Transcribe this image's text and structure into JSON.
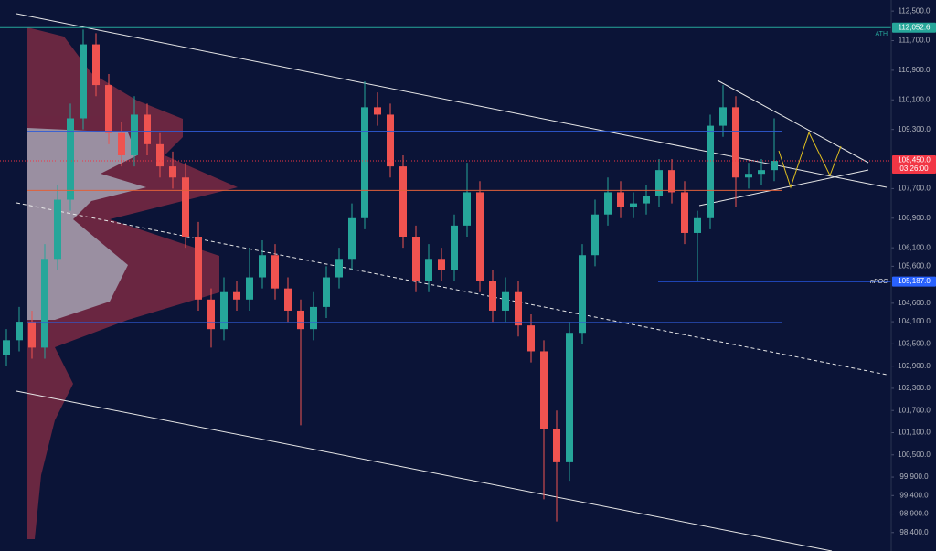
{
  "chart_data": {
    "type": "candlestick",
    "up_color": "#26a69a",
    "down_color": "#ef5350",
    "open": [
      103200,
      103600,
      104100,
      103400,
      105800,
      107400,
      109600,
      111600,
      110500,
      109200,
      108600,
      109700,
      108900,
      108300,
      108000,
      106400,
      104700,
      103900,
      104900,
      104700,
      105300,
      105900,
      105000,
      104400,
      103900,
      104500,
      105300,
      105800,
      106900,
      109900,
      109700,
      108300,
      106400,
      105200,
      105800,
      105500,
      106700,
      107600,
      105200,
      104400,
      104900,
      104000,
      103300,
      101200,
      100300,
      103800,
      105900,
      107000,
      107600,
      107200,
      107300,
      107500,
      108200,
      107600,
      106500,
      106900,
      109400,
      109900,
      108000,
      108100,
      108200
    ],
    "high": [
      103900,
      104500,
      104400,
      106200,
      107800,
      110000,
      112000,
      111900,
      110800,
      109500,
      110200,
      110000,
      109200,
      108700,
      108400,
      106800,
      105000,
      105300,
      105200,
      106100,
      106300,
      106200,
      105300,
      104700,
      104900,
      105600,
      106100,
      107300,
      110600,
      110300,
      110000,
      108600,
      106700,
      106200,
      106100,
      107000,
      108400,
      107900,
      105500,
      105300,
      105200,
      104300,
      103600,
      101700,
      104100,
      106200,
      107400,
      108000,
      107900,
      107600,
      107800,
      108500,
      108500,
      107900,
      107100,
      109700,
      110500,
      110200,
      108400,
      108500,
      109600
    ],
    "low": [
      102900,
      103300,
      103100,
      103100,
      105500,
      107100,
      109300,
      110200,
      108900,
      108300,
      108300,
      108600,
      108000,
      107700,
      106100,
      104400,
      103400,
      103600,
      104400,
      104400,
      105000,
      104700,
      104100,
      101300,
      103600,
      104200,
      105000,
      105500,
      106600,
      109400,
      108000,
      106100,
      104900,
      104900,
      105200,
      105200,
      106400,
      104900,
      104100,
      104100,
      103700,
      103000,
      99300,
      98700,
      99800,
      103500,
      105600,
      106700,
      106900,
      106900,
      107000,
      107200,
      107300,
      106200,
      105200,
      106600,
      109100,
      107200,
      107700,
      107800,
      107900
    ],
    "close": [
      103600,
      104100,
      103400,
      105800,
      107400,
      109600,
      111600,
      110500,
      109200,
      108600,
      109700,
      108900,
      108300,
      108000,
      106400,
      104700,
      103900,
      104900,
      104700,
      105300,
      105900,
      105000,
      104400,
      103900,
      104500,
      105300,
      105800,
      106900,
      109900,
      109700,
      108300,
      106400,
      105200,
      105800,
      105500,
      106700,
      107600,
      105200,
      104400,
      104900,
      104000,
      103300,
      101200,
      100300,
      103800,
      105900,
      107000,
      107600,
      107200,
      107300,
      107500,
      108200,
      107600,
      106500,
      106900,
      109400,
      109900,
      108000,
      108100,
      108200,
      108450
    ],
    "ylim": [
      97900,
      112800
    ],
    "yticks": [
      {
        "value": 112500,
        "label": "112,500.0"
      },
      {
        "value": 111700,
        "label": "111,700.0"
      },
      {
        "value": 110900,
        "label": "110,900.0"
      },
      {
        "value": 110100,
        "label": "110,100.0"
      },
      {
        "value": 109300,
        "label": "109,300.0"
      },
      {
        "value": 107700,
        "label": "107,700.0"
      },
      {
        "value": 106900,
        "label": "106,900.0"
      },
      {
        "value": 106100,
        "label": "106,100.0"
      },
      {
        "value": 105600,
        "label": "105,600.0"
      },
      {
        "value": 104600,
        "label": "104,600.0"
      },
      {
        "value": 104100,
        "label": "104,100.0"
      },
      {
        "value": 103500,
        "label": "103,500.0"
      },
      {
        "value": 102900,
        "label": "102,900.0"
      },
      {
        "value": 102300,
        "label": "102,300.0"
      },
      {
        "value": 101700,
        "label": "101,700.0"
      },
      {
        "value": 101100,
        "label": "101,100.0"
      },
      {
        "value": 100500,
        "label": "100,500.0"
      },
      {
        "value": 99900,
        "label": "99,900.0"
      },
      {
        "value": 99400,
        "label": "99,400.0"
      },
      {
        "value": 98900,
        "label": "98,900.0"
      },
      {
        "value": 98400,
        "label": "98,400.0"
      }
    ],
    "levels": [
      {
        "name": "ATH",
        "value": 112052.6,
        "value_label": "112,052.6",
        "color": "#26a69a"
      },
      {
        "value": 109250,
        "color": "#2f5bd6"
      },
      {
        "value": 108450,
        "value_label": "108,450.0",
        "countdown": "03:26:00",
        "color": "#f23645",
        "dashed": true
      },
      {
        "value": 107650,
        "color": "#e0603a"
      },
      {
        "value": 104080,
        "color": "#2f5bd6"
      },
      {
        "name": "nPOC",
        "value": 105187,
        "value_label": "105,187.0",
        "color": "#2962ff"
      }
    ]
  }
}
